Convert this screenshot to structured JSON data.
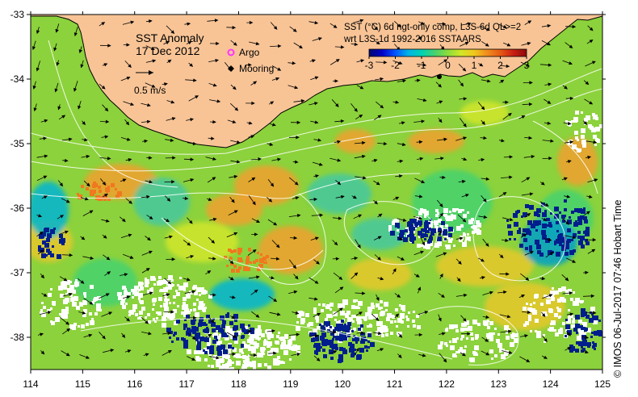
{
  "map": {
    "title": "SST Anomaly",
    "date": "17 Dec 2012",
    "scale_arrow_label": "0.5 m/s",
    "legend": {
      "argo_label": "Argo",
      "mooring_label": "Mooring",
      "argo_color": "#ff33ff",
      "mooring_color": "#000000"
    },
    "description_line1": "SST (°C) 6d ngt-only comp, L3S-6d QL>=2",
    "description_line2": "wrt L3S-1d 1992-2016 SSTAARS",
    "colorbar": {
      "min": -3,
      "max": 3,
      "tick_labels": [
        "-3",
        "-2",
        "-1",
        "0",
        "1",
        "2",
        "3"
      ],
      "colors": [
        "#000a6e",
        "#0000c8",
        "#0055ff",
        "#00b4e6",
        "#00d2b4",
        "#46d26e",
        "#8cdc3c",
        "#d2e628",
        "#f0c81e",
        "#f08c1e",
        "#e65a14",
        "#c81e14",
        "#8c0a0a"
      ]
    },
    "land_color": "#f8c496",
    "credit": "©  IMOS 06-Jul-2017 07:46 Hobart Time",
    "x_axis": {
      "labels": [
        "114",
        "115",
        "116",
        "117",
        "118",
        "119",
        "120",
        "121",
        "122",
        "123",
        "124",
        "125"
      ],
      "min": 114,
      "max": 125
    },
    "y_axis": {
      "labels": [
        "-33",
        "-34",
        "-35",
        "-36",
        "-37",
        "-38"
      ],
      "min": -38.5,
      "max": -33
    }
  }
}
